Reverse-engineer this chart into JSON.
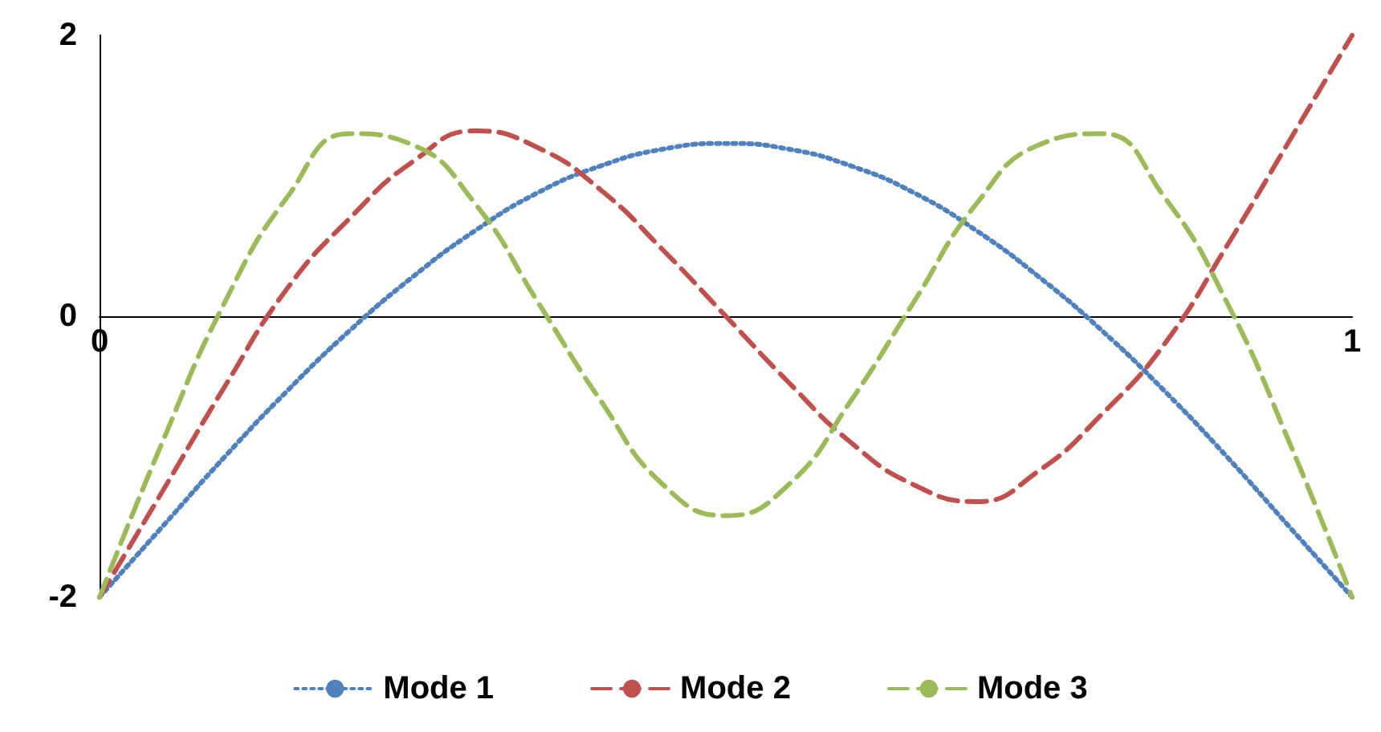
{
  "chart_data": {
    "type": "line",
    "x": [
      0,
      0.05,
      0.1,
      0.15,
      0.2,
      0.25,
      0.3,
      0.35,
      0.4,
      0.45,
      0.5,
      0.55,
      0.6,
      0.65,
      0.7,
      0.75,
      0.8,
      0.85,
      0.9,
      0.95,
      1
    ],
    "series": [
      {
        "name": "Mode 1",
        "color": "#4f81bd",
        "line_style": "dotted",
        "values": [
          -2,
          -1.5,
          -1.0,
          -0.53,
          -0.1,
          0.28,
          0.61,
          0.88,
          1.07,
          1.19,
          1.23,
          1.19,
          1.07,
          0.88,
          0.61,
          0.28,
          -0.1,
          -0.53,
          -1.0,
          -1.5,
          -2
        ]
      },
      {
        "name": "Mode 2",
        "color": "#c0504d",
        "line_style": "dashed",
        "values": [
          -2,
          -1.25,
          -0.5,
          0.2,
          0.7,
          1.1,
          1.32,
          1.2,
          0.9,
          0.47,
          0,
          -0.47,
          -0.9,
          -1.2,
          -1.32,
          -1.1,
          -0.7,
          -0.2,
          0.5,
          1.25,
          2
        ]
      },
      {
        "name": "Mode 3",
        "color": "#9bbb59",
        "line_style": "dashed",
        "values": [
          -2,
          -0.9,
          0.1,
          0.85,
          1.3,
          1.22,
          0.8,
          0.1,
          -0.6,
          -1.2,
          -1.42,
          -1.2,
          -0.6,
          0.1,
          0.8,
          1.22,
          1.3,
          0.85,
          0.1,
          -0.9,
          -2
        ]
      }
    ],
    "xlim": [
      0,
      1
    ],
    "xticks": [
      0,
      1
    ],
    "ylim": [
      -2,
      2
    ],
    "yticks": [
      -2,
      0,
      2
    ],
    "grid": false,
    "legend": "bottom",
    "marker": "none"
  }
}
